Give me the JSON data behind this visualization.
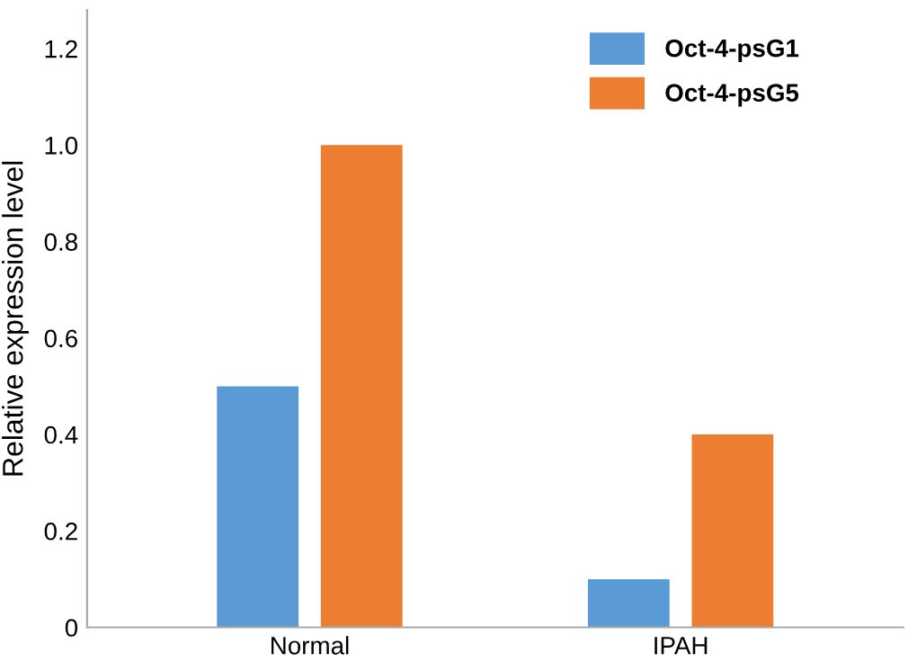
{
  "chart_data": {
    "type": "bar",
    "ylabel": "Relative expression level",
    "categories": [
      "Normal",
      "IPAH"
    ],
    "series": [
      {
        "name": "Oct-4-psG1",
        "color": "#5b9bd5",
        "values": [
          0.5,
          0.1
        ]
      },
      {
        "name": "Oct-4-psG5",
        "color": "#ed7d31",
        "values": [
          1.0,
          0.4
        ]
      }
    ],
    "ylim": [
      0,
      1.28
    ],
    "yticks": [
      0,
      0.2,
      0.4,
      0.6,
      {
        "value": 0.8,
        "label": "0.8"
      },
      {
        "value": 1.0,
        "label": "1.0"
      },
      1.2
    ],
    "grid": false,
    "legend": "top right"
  }
}
